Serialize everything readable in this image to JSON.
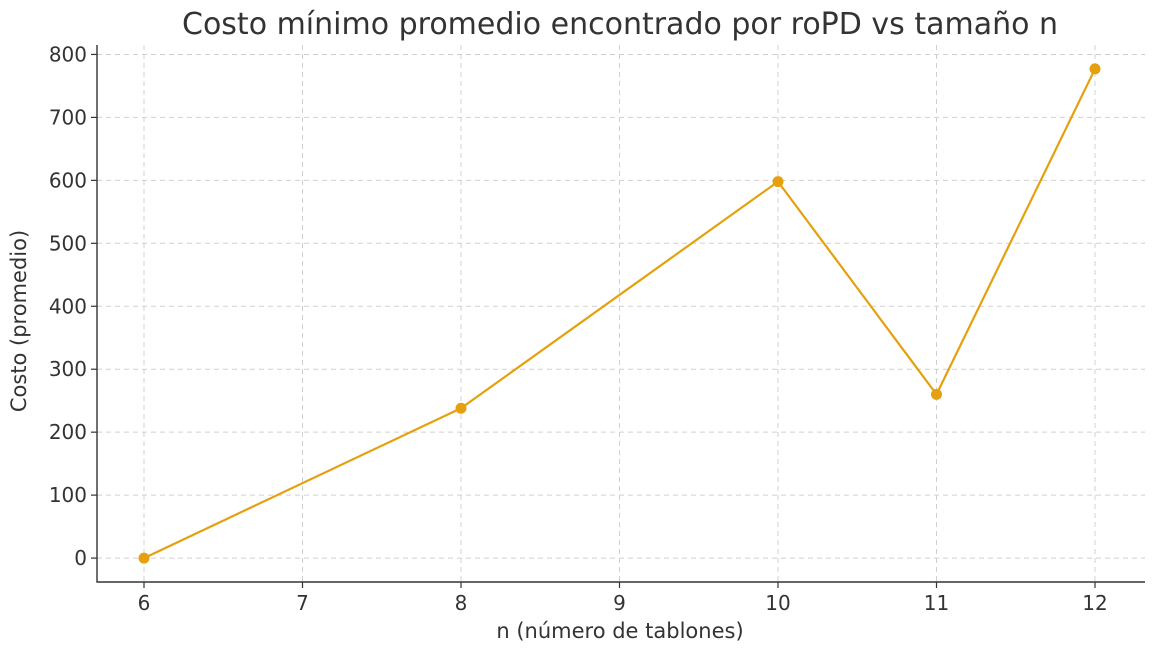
{
  "chart_data": {
    "type": "line",
    "title": "Costo mínimo promedio encontrado por roPD vs tamaño n",
    "xlabel": "n (número de tablones)",
    "ylabel": "Costo (promedio)",
    "categories": [
      "6",
      "7",
      "8",
      "9",
      "10",
      "11",
      "12"
    ],
    "points": [
      {
        "x": 6,
        "y": 0
      },
      {
        "x": 8,
        "y": 238
      },
      {
        "x": 10,
        "y": 598
      },
      {
        "x": 11,
        "y": 260
      },
      {
        "x": 12,
        "y": 777
      }
    ],
    "yticks": [
      0,
      100,
      200,
      300,
      400,
      500,
      600,
      700,
      800
    ],
    "ylim": [
      -38,
      815
    ],
    "grid": true,
    "line_color": "#E5A00D",
    "marker": "circle"
  }
}
